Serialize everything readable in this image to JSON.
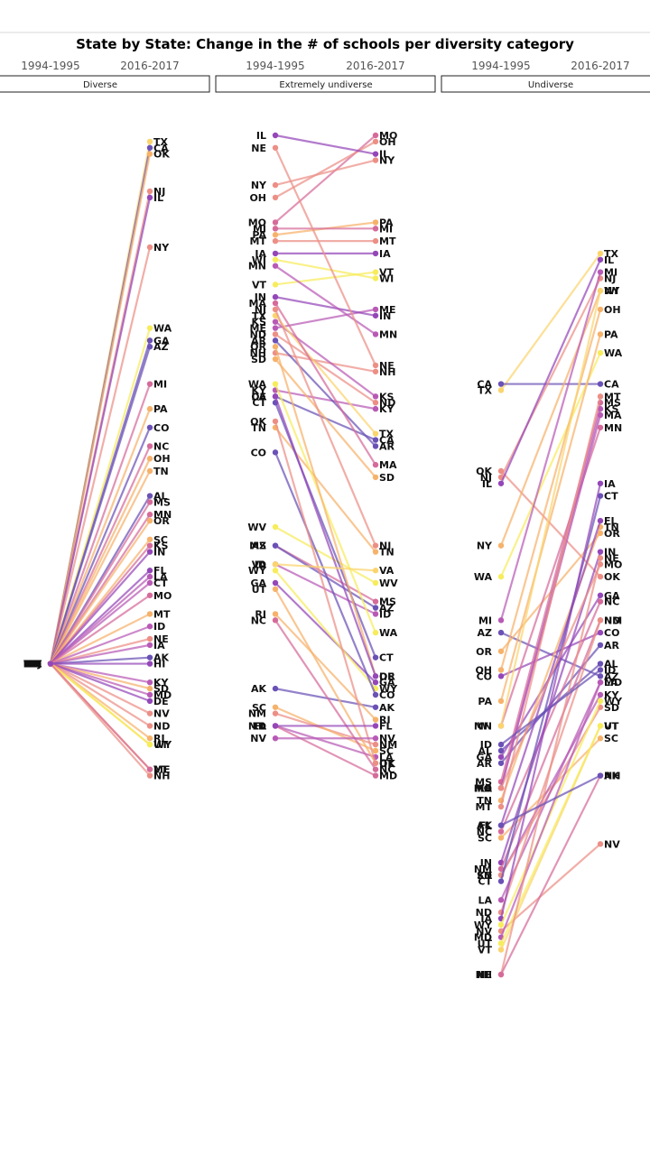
{
  "chart_data": {
    "type": "line",
    "subtype": "slopegraph",
    "title": "State by State: Change in the # of schools per diversity category",
    "periods": [
      "1994-1995",
      "2016-2017"
    ],
    "colors": [
      "#6a51b5",
      "#9447b8",
      "#b85ab5",
      "#d56b9a",
      "#ec8f86",
      "#f6b26b",
      "#fbd46d",
      "#f7ec5c"
    ],
    "panels": [
      {
        "name": "Diverse",
        "lines": [
          {
            "state": "TX",
            "y1": 14,
            "y2": 98,
            "color": 6
          },
          {
            "state": "CA",
            "y1": 14,
            "y2": 97,
            "color": 0
          },
          {
            "state": "OK",
            "y1": 14,
            "y2": 96,
            "color": 5
          },
          {
            "state": "NJ",
            "y1": 14,
            "y2": 90,
            "color": 4
          },
          {
            "state": "IL",
            "y1": 14,
            "y2": 89,
            "color": 1
          },
          {
            "state": "NY",
            "y1": 14,
            "y2": 81,
            "color": 4
          },
          {
            "state": "WA",
            "y1": 14,
            "y2": 68,
            "color": 7
          },
          {
            "state": "GA",
            "y1": 14,
            "y2": 66,
            "color": 0
          },
          {
            "state": "AZ",
            "y1": 14,
            "y2": 65,
            "color": 0
          },
          {
            "state": "MI",
            "y1": 14,
            "y2": 59,
            "color": 3
          },
          {
            "state": "PA",
            "y1": 14,
            "y2": 55,
            "color": 5
          },
          {
            "state": "CO",
            "y1": 14,
            "y2": 52,
            "color": 0
          },
          {
            "state": "NC",
            "y1": 14,
            "y2": 49,
            "color": 3
          },
          {
            "state": "OH",
            "y1": 14,
            "y2": 47,
            "color": 5
          },
          {
            "state": "TN",
            "y1": 14,
            "y2": 45,
            "color": 5
          },
          {
            "state": "AL",
            "y1": 14,
            "y2": 41,
            "color": 0
          },
          {
            "state": "MS",
            "y1": 14,
            "y2": 40,
            "color": 3
          },
          {
            "state": "MN",
            "y1": 14,
            "y2": 38,
            "color": 3
          },
          {
            "state": "OR",
            "y1": 14,
            "y2": 37,
            "color": 5
          },
          {
            "state": "SC",
            "y1": 14,
            "y2": 34,
            "color": 5
          },
          {
            "state": "KS",
            "y1": 14,
            "y2": 33,
            "color": 3
          },
          {
            "state": "IN",
            "y1": 14,
            "y2": 32,
            "color": 1
          },
          {
            "state": "FL",
            "y1": 14,
            "y2": 29,
            "color": 1
          },
          {
            "state": "LA",
            "y1": 14,
            "y2": 28,
            "color": 2
          },
          {
            "state": "CT",
            "y1": 14,
            "y2": 27,
            "color": 2
          },
          {
            "state": "MO",
            "y1": 14,
            "y2": 25,
            "color": 3
          },
          {
            "state": "MT",
            "y1": 14,
            "y2": 22,
            "color": 5
          },
          {
            "state": "ID",
            "y1": 14,
            "y2": 20,
            "color": 2
          },
          {
            "state": "NE",
            "y1": 14,
            "y2": 18,
            "color": 4
          },
          {
            "state": "IA",
            "y1": 14,
            "y2": 17,
            "color": 2
          },
          {
            "state": "AK",
            "y1": 14,
            "y2": 15,
            "color": 0
          },
          {
            "state": "KY",
            "y1": 14,
            "y2": 11,
            "color": 2
          },
          {
            "state": "SD",
            "y1": 14,
            "y2": 10,
            "color": 5
          },
          {
            "state": "MD",
            "y1": 14,
            "y2": 9,
            "color": 2
          },
          {
            "state": "DE",
            "y1": 14,
            "y2": 8,
            "color": 1
          },
          {
            "state": "NV",
            "y1": 14,
            "y2": 6,
            "color": 4
          },
          {
            "state": "ND",
            "y1": 14,
            "y2": 4,
            "color": 4
          },
          {
            "state": "RI",
            "y1": 14,
            "y2": 2,
            "color": 5
          },
          {
            "state": "UT",
            "y1": 14,
            "y2": 1,
            "color": 6
          },
          {
            "state": "WY",
            "y1": 14,
            "y2": 1,
            "color": 7
          },
          {
            "state": "VT",
            "y1": 14,
            "y2": -3,
            "color": 5
          },
          {
            "state": "ME",
            "y1": 14,
            "y2": -3,
            "color": 3
          },
          {
            "state": "NH",
            "y1": 14,
            "y2": -4,
            "color": 4
          },
          {
            "state": "HI",
            "y1": 14,
            "y2": 14,
            "color": 1
          }
        ]
      },
      {
        "name": "Extremely undiverse",
        "lines": [
          {
            "state": "MO",
            "y1": 85,
            "y2": 99,
            "color": 3
          },
          {
            "state": "OH",
            "y1": 89,
            "y2": 98,
            "color": 4
          },
          {
            "state": "IL",
            "y1": 99,
            "y2": 96,
            "color": 1
          },
          {
            "state": "NY",
            "y1": 91,
            "y2": 95,
            "color": 4
          },
          {
            "state": "PA",
            "y1": 83,
            "y2": 85,
            "color": 5
          },
          {
            "state": "MI",
            "y1": 84,
            "y2": 84,
            "color": 3
          },
          {
            "state": "MT",
            "y1": 82,
            "y2": 82,
            "color": 4
          },
          {
            "state": "IA",
            "y1": 80,
            "y2": 80,
            "color": 1
          },
          {
            "state": "VT",
            "y1": 75,
            "y2": 77,
            "color": 7
          },
          {
            "state": "WI",
            "y1": 79,
            "y2": 76,
            "color": 7
          },
          {
            "state": "ME",
            "y1": 68,
            "y2": 71,
            "color": 2
          },
          {
            "state": "IN",
            "y1": 73,
            "y2": 70,
            "color": 1
          },
          {
            "state": "MN",
            "y1": 78,
            "y2": 67,
            "color": 2
          },
          {
            "state": "NE",
            "y1": 97,
            "y2": 62,
            "color": 4
          },
          {
            "state": "NH",
            "y1": 64,
            "y2": 61,
            "color": 4
          },
          {
            "state": "KS",
            "y1": 69,
            "y2": 57,
            "color": 2
          },
          {
            "state": "ND",
            "y1": 67,
            "y2": 56,
            "color": 4
          },
          {
            "state": "KY",
            "y1": 58,
            "y2": 55,
            "color": 2
          },
          {
            "state": "TX",
            "y1": 70,
            "y2": 51,
            "color": 6
          },
          {
            "state": "CA",
            "y1": 57,
            "y2": 50,
            "color": 0
          },
          {
            "state": "AR",
            "y1": 66,
            "y2": 49,
            "color": 0
          },
          {
            "state": "MA",
            "y1": 72,
            "y2": 46,
            "color": 3
          },
          {
            "state": "SD",
            "y1": 63,
            "y2": 44,
            "color": 5
          },
          {
            "state": "NJ",
            "y1": 71,
            "y2": 33,
            "color": 4
          },
          {
            "state": "TN",
            "y1": 52,
            "y2": 32,
            "color": 5
          },
          {
            "state": "WV",
            "y1": 36,
            "y2": 27,
            "color": 7
          },
          {
            "state": "MS",
            "y1": 33,
            "y2": 24,
            "color": 3
          },
          {
            "state": "AZ",
            "y1": 33,
            "y2": 23,
            "color": 0
          },
          {
            "state": "ID",
            "y1": 30,
            "y2": 22,
            "color": 2
          },
          {
            "state": "WA",
            "y1": 59,
            "y2": 19,
            "color": 7
          },
          {
            "state": "CT",
            "y1": 56,
            "y2": 15,
            "color": 0
          },
          {
            "state": "OR",
            "y1": 65,
            "y2": 12,
            "color": 5
          },
          {
            "state": "DE",
            "y1": 57,
            "y2": 12,
            "color": 1
          },
          {
            "state": "GA",
            "y1": 27,
            "y2": 11,
            "color": 1
          },
          {
            "state": "WY",
            "y1": 29,
            "y2": 10,
            "color": 7
          },
          {
            "state": "CO",
            "y1": 48,
            "y2": 9,
            "color": 0
          },
          {
            "state": "AK",
            "y1": 10,
            "y2": 7,
            "color": 0
          },
          {
            "state": "RI",
            "y1": 22,
            "y2": 5,
            "color": 5
          },
          {
            "state": "NM",
            "y1": 6,
            "y2": 1,
            "color": 4
          },
          {
            "state": "SC",
            "y1": 7,
            "y2": 0,
            "color": 5
          },
          {
            "state": "LA",
            "y1": 4,
            "y2": -1,
            "color": 2
          },
          {
            "state": "UT",
            "y1": 26,
            "y2": -2,
            "color": 5
          },
          {
            "state": "OK",
            "y1": 53,
            "y2": -2,
            "color": 4
          },
          {
            "state": "NC",
            "y1": 21,
            "y2": -3,
            "color": 3
          },
          {
            "state": "MD",
            "y1": 4,
            "y2": -4,
            "color": 3
          },
          {
            "state": "VA",
            "y1": 30,
            "y2": 29,
            "color": 6
          },
          {
            "state": "FL",
            "y1": 4,
            "y2": 4,
            "color": 1
          },
          {
            "state": "NV",
            "y1": 2,
            "y2": 2,
            "color": 2
          }
        ]
      },
      {
        "name": "Undiverse",
        "lines": [
          {
            "state": "TX",
            "y1": 58,
            "y2": 80,
            "color": 6
          },
          {
            "state": "CA",
            "y1": 59,
            "y2": 59,
            "color": 0
          },
          {
            "state": "OK",
            "y1": 45,
            "y2": 28,
            "color": 4
          },
          {
            "state": "NJ",
            "y1": 44,
            "y2": 76,
            "color": 4
          },
          {
            "state": "IL",
            "y1": 43,
            "y2": 79,
            "color": 1
          },
          {
            "state": "NY",
            "y1": 33,
            "y2": 74,
            "color": 5
          },
          {
            "state": "WA",
            "y1": 28,
            "y2": 64,
            "color": 7
          },
          {
            "state": "MI",
            "y1": 21,
            "y2": 77,
            "color": 2
          },
          {
            "state": "AZ",
            "y1": 19,
            "y2": 12,
            "color": 0
          },
          {
            "state": "OR",
            "y1": 16,
            "y2": 35,
            "color": 5
          },
          {
            "state": "OH",
            "y1": 13,
            "y2": 71,
            "color": 5
          },
          {
            "state": "CO",
            "y1": 12,
            "y2": 19,
            "color": 1
          },
          {
            "state": "PA",
            "y1": 8,
            "y2": 67,
            "color": 5
          },
          {
            "state": "MN",
            "y1": 4,
            "y2": 52,
            "color": 3
          },
          {
            "state": "WI",
            "y1": 4,
            "y2": 74,
            "color": 6
          },
          {
            "state": "AL",
            "y1": 0,
            "y2": 14,
            "color": 0
          },
          {
            "state": "GA",
            "y1": -1,
            "y2": 25,
            "color": 1
          },
          {
            "state": "AR",
            "y1": -2,
            "y2": 17,
            "color": 0
          },
          {
            "state": "MS",
            "y1": -5,
            "y2": 56,
            "color": 3
          },
          {
            "state": "KS",
            "y1": -6,
            "y2": 55,
            "color": 2
          },
          {
            "state": "MA",
            "y1": -6,
            "y2": 54,
            "color": 2
          },
          {
            "state": "TN",
            "y1": -8,
            "y2": 36,
            "color": 5
          },
          {
            "state": "MT",
            "y1": -9,
            "y2": 57,
            "color": 4
          },
          {
            "state": "FL",
            "y1": -12,
            "y2": 37,
            "color": 1
          },
          {
            "state": "NC",
            "y1": -13,
            "y2": 24,
            "color": 3
          },
          {
            "state": "SC",
            "y1": -14,
            "y2": 2,
            "color": 5
          },
          {
            "state": "IN",
            "y1": -18,
            "y2": 32,
            "color": 1
          },
          {
            "state": "NM",
            "y1": -19,
            "y2": 21,
            "color": 3
          },
          {
            "state": "KY",
            "y1": -20,
            "y2": 9,
            "color": 2
          },
          {
            "state": "SD",
            "y1": -20,
            "y2": 7,
            "color": 4
          },
          {
            "state": "CT",
            "y1": -21,
            "y2": 41,
            "color": 0
          },
          {
            "state": "LA",
            "y1": -24,
            "y2": 11,
            "color": 2
          },
          {
            "state": "ND",
            "y1": -26,
            "y2": 21,
            "color": 4
          },
          {
            "state": "IA",
            "y1": -27,
            "y2": 43,
            "color": 1
          },
          {
            "state": "WY",
            "y1": -28,
            "y2": 8,
            "color": 7
          },
          {
            "state": "NV",
            "y1": -29,
            "y2": -15,
            "color": 4
          },
          {
            "state": "MD",
            "y1": -30,
            "y2": 11,
            "color": 2
          },
          {
            "state": "VT",
            "y1": -32,
            "y2": 4,
            "color": 6
          },
          {
            "state": "UT",
            "y1": -31,
            "y2": 4,
            "color": 7
          },
          {
            "state": "NE",
            "y1": -36,
            "y2": 31,
            "color": 4
          },
          {
            "state": "NH",
            "y1": -36,
            "y2": -4,
            "color": 3
          },
          {
            "state": "MO",
            "y1": -6,
            "y2": 30,
            "color": 4
          },
          {
            "state": "ID",
            "y1": 1,
            "y2": 13,
            "color": 0
          },
          {
            "state": "AK",
            "y1": -12,
            "y2": -4,
            "color": 0
          }
        ]
      }
    ]
  }
}
